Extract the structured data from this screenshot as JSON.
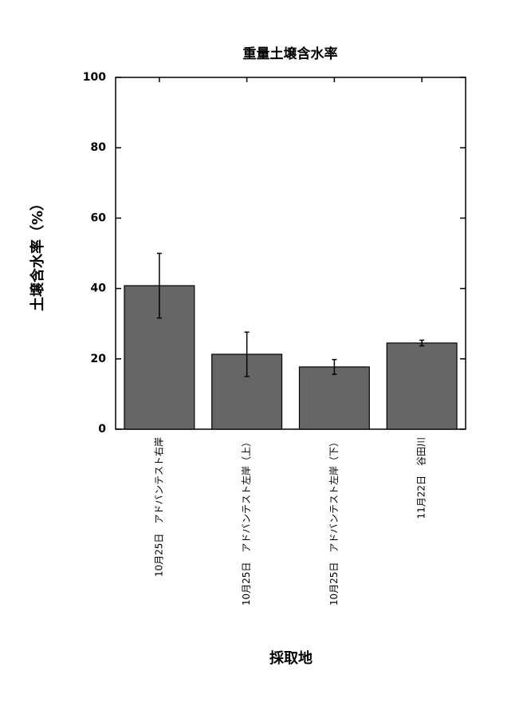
{
  "chart_data": {
    "type": "bar",
    "title": "重量土壌含水率",
    "x_label": "採取地",
    "y_label": "土壌含水率（%）",
    "categories": [
      "10月25日　アドバンテスト右岸",
      "10月25日　アドバンテスト左岸（上）",
      "10月25日　アドバンテスト左岸（下）",
      "11月22日　谷田川"
    ],
    "values": [
      40.8,
      21.3,
      17.7,
      24.5
    ],
    "errors": [
      9.2,
      6.3,
      2.1,
      0.8
    ],
    "color": "#666666",
    "ylim": [
      0,
      100
    ],
    "yticks": [
      0,
      20,
      40,
      60,
      80,
      100
    ]
  }
}
